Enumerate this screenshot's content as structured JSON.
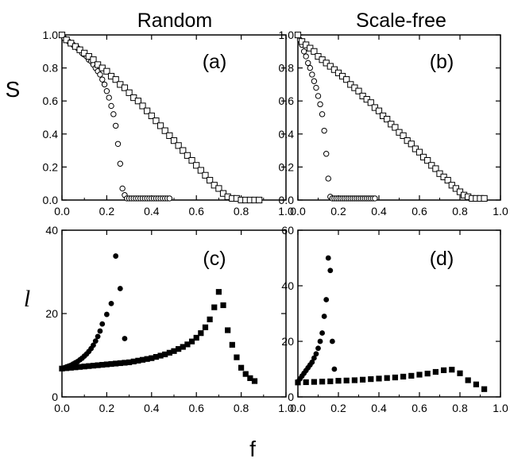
{
  "columns": [
    "Random",
    "Scale-free"
  ],
  "xlabel": "f",
  "chart_data": [
    {
      "type": "scatter",
      "panel": "(a)",
      "ylabel": "S",
      "xlim": [
        0,
        1.0
      ],
      "ylim": [
        0,
        1.0
      ],
      "xticks": [
        "0.0",
        "0.2",
        "0.4",
        "0.6",
        "0.8",
        "1.0"
      ],
      "yticks": [
        "0.0",
        "0.2",
        "0.4",
        "0.6",
        "0.8",
        "1.0"
      ],
      "series": [
        {
          "marker": "open-circle",
          "x": [
            0.0,
            0.01,
            0.02,
            0.03,
            0.04,
            0.05,
            0.06,
            0.07,
            0.08,
            0.09,
            0.1,
            0.11,
            0.12,
            0.13,
            0.14,
            0.15,
            0.16,
            0.17,
            0.18,
            0.19,
            0.2,
            0.21,
            0.22,
            0.23,
            0.24,
            0.25,
            0.26,
            0.27,
            0.28,
            0.29,
            0.3,
            0.31,
            0.32,
            0.33,
            0.34,
            0.35,
            0.36,
            0.37,
            0.38,
            0.39,
            0.4,
            0.41,
            0.42,
            0.43,
            0.44,
            0.45,
            0.46,
            0.47,
            0.48
          ],
          "y": [
            1.0,
            0.98,
            0.97,
            0.96,
            0.95,
            0.94,
            0.93,
            0.92,
            0.91,
            0.89,
            0.88,
            0.87,
            0.85,
            0.84,
            0.82,
            0.8,
            0.78,
            0.76,
            0.73,
            0.7,
            0.66,
            0.62,
            0.57,
            0.52,
            0.45,
            0.34,
            0.22,
            0.07,
            0.03,
            0.01,
            0.01,
            0.01,
            0.01,
            0.01,
            0.01,
            0.01,
            0.01,
            0.01,
            0.01,
            0.01,
            0.01,
            0.01,
            0.01,
            0.01,
            0.01,
            0.01,
            0.01,
            0.01,
            0.01
          ]
        },
        {
          "marker": "open-square",
          "x": [
            0.0,
            0.02,
            0.04,
            0.06,
            0.08,
            0.1,
            0.12,
            0.14,
            0.16,
            0.18,
            0.2,
            0.22,
            0.24,
            0.26,
            0.28,
            0.3,
            0.32,
            0.34,
            0.36,
            0.38,
            0.4,
            0.42,
            0.44,
            0.46,
            0.48,
            0.5,
            0.52,
            0.54,
            0.56,
            0.58,
            0.6,
            0.62,
            0.64,
            0.66,
            0.68,
            0.7,
            0.72,
            0.74,
            0.76,
            0.78,
            0.8,
            0.82,
            0.84,
            0.86,
            0.88
          ],
          "y": [
            1.0,
            0.97,
            0.95,
            0.93,
            0.91,
            0.89,
            0.87,
            0.85,
            0.82,
            0.8,
            0.78,
            0.75,
            0.73,
            0.7,
            0.68,
            0.65,
            0.62,
            0.6,
            0.57,
            0.54,
            0.51,
            0.48,
            0.45,
            0.42,
            0.39,
            0.36,
            0.33,
            0.3,
            0.27,
            0.24,
            0.21,
            0.18,
            0.15,
            0.12,
            0.09,
            0.07,
            0.04,
            0.02,
            0.01,
            0.01,
            0.0,
            0.0,
            0.0,
            0.0,
            0.0
          ]
        }
      ]
    },
    {
      "type": "scatter",
      "panel": "(b)",
      "xlim": [
        0,
        1.0
      ],
      "ylim": [
        0,
        1.0
      ],
      "xticks": [
        "0.0",
        "0.2",
        "0.4",
        "0.6",
        "0.8",
        "1.0"
      ],
      "yticks": [
        "0.0",
        "0.2",
        "0.4",
        "0.6",
        "0.8",
        "1.0"
      ],
      "series": [
        {
          "marker": "open-circle",
          "x": [
            0.0,
            0.01,
            0.02,
            0.03,
            0.04,
            0.05,
            0.06,
            0.07,
            0.08,
            0.09,
            0.1,
            0.11,
            0.12,
            0.13,
            0.14,
            0.15,
            0.16,
            0.17,
            0.18,
            0.19,
            0.2,
            0.21,
            0.22,
            0.23,
            0.24,
            0.25,
            0.26,
            0.27,
            0.28,
            0.29,
            0.3,
            0.31,
            0.32,
            0.33,
            0.34,
            0.35,
            0.36,
            0.37,
            0.38
          ],
          "y": [
            1.0,
            0.97,
            0.94,
            0.9,
            0.87,
            0.83,
            0.8,
            0.76,
            0.72,
            0.68,
            0.63,
            0.58,
            0.52,
            0.42,
            0.28,
            0.13,
            0.02,
            0.01,
            0.01,
            0.01,
            0.01,
            0.01,
            0.01,
            0.01,
            0.01,
            0.01,
            0.01,
            0.01,
            0.01,
            0.01,
            0.01,
            0.01,
            0.01,
            0.01,
            0.01,
            0.01,
            0.01,
            0.01,
            0.01
          ]
        },
        {
          "marker": "open-square",
          "x": [
            0.0,
            0.02,
            0.04,
            0.06,
            0.08,
            0.1,
            0.12,
            0.14,
            0.16,
            0.18,
            0.2,
            0.22,
            0.24,
            0.26,
            0.28,
            0.3,
            0.32,
            0.34,
            0.36,
            0.38,
            0.4,
            0.42,
            0.44,
            0.46,
            0.48,
            0.5,
            0.52,
            0.54,
            0.56,
            0.58,
            0.6,
            0.62,
            0.64,
            0.66,
            0.68,
            0.7,
            0.72,
            0.74,
            0.76,
            0.78,
            0.8,
            0.82,
            0.84,
            0.86,
            0.88,
            0.9,
            0.92
          ],
          "y": [
            1.0,
            0.96,
            0.94,
            0.92,
            0.9,
            0.87,
            0.85,
            0.83,
            0.81,
            0.79,
            0.77,
            0.75,
            0.73,
            0.7,
            0.68,
            0.66,
            0.63,
            0.61,
            0.59,
            0.56,
            0.54,
            0.51,
            0.49,
            0.46,
            0.44,
            0.41,
            0.39,
            0.36,
            0.34,
            0.31,
            0.29,
            0.26,
            0.24,
            0.21,
            0.19,
            0.16,
            0.14,
            0.12,
            0.09,
            0.07,
            0.05,
            0.03,
            0.02,
            0.01,
            0.01,
            0.01,
            0.01
          ]
        }
      ]
    },
    {
      "type": "scatter",
      "panel": "(c)",
      "ylabel": "l",
      "xlim": [
        0,
        1.0
      ],
      "ylim": [
        0,
        40
      ],
      "xticks": [
        "0.0",
        "0.2",
        "0.4",
        "0.6",
        "0.8",
        "1.0"
      ],
      "yticks": [
        "0",
        "20",
        "40"
      ],
      "series": [
        {
          "marker": "filled-circle",
          "x": [
            0.0,
            0.01,
            0.02,
            0.03,
            0.04,
            0.05,
            0.06,
            0.07,
            0.08,
            0.09,
            0.1,
            0.11,
            0.12,
            0.13,
            0.14,
            0.15,
            0.16,
            0.17,
            0.18,
            0.2,
            0.22,
            0.24,
            0.26,
            0.28
          ],
          "y": [
            6.8,
            7.0,
            7.2,
            7.4,
            7.6,
            7.9,
            8.2,
            8.5,
            8.9,
            9.3,
            9.8,
            10.3,
            10.9,
            11.6,
            12.4,
            13.4,
            14.5,
            15.8,
            17.5,
            19.8,
            22.4,
            33.8,
            26.0,
            14.0
          ]
        },
        {
          "marker": "filled-square",
          "x": [
            0.0,
            0.02,
            0.04,
            0.06,
            0.08,
            0.1,
            0.12,
            0.14,
            0.16,
            0.18,
            0.2,
            0.22,
            0.24,
            0.26,
            0.28,
            0.3,
            0.32,
            0.34,
            0.36,
            0.38,
            0.4,
            0.42,
            0.44,
            0.46,
            0.48,
            0.5,
            0.52,
            0.54,
            0.56,
            0.58,
            0.6,
            0.62,
            0.64,
            0.66,
            0.68,
            0.7,
            0.72,
            0.74,
            0.76,
            0.78,
            0.8,
            0.82,
            0.84,
            0.86
          ],
          "y": [
            6.8,
            6.9,
            7.0,
            7.1,
            7.2,
            7.3,
            7.4,
            7.5,
            7.6,
            7.7,
            7.8,
            7.9,
            8.0,
            8.1,
            8.2,
            8.3,
            8.5,
            8.7,
            8.9,
            9.1,
            9.3,
            9.6,
            9.9,
            10.2,
            10.6,
            11.0,
            11.5,
            12.0,
            12.6,
            13.3,
            14.2,
            15.3,
            16.7,
            18.6,
            21.5,
            25.2,
            22.0,
            16.0,
            12.5,
            9.5,
            7.0,
            5.5,
            4.5,
            3.8
          ]
        }
      ]
    },
    {
      "type": "scatter",
      "panel": "(d)",
      "xlim": [
        0,
        1.0
      ],
      "ylim": [
        0,
        60
      ],
      "xticks": [
        "0.0",
        "0.2",
        "0.4",
        "0.6",
        "0.8",
        "1.0"
      ],
      "yticks": [
        "0",
        "20",
        "40",
        "60"
      ],
      "series": [
        {
          "marker": "filled-circle",
          "x": [
            0.0,
            0.01,
            0.02,
            0.03,
            0.04,
            0.05,
            0.06,
            0.07,
            0.08,
            0.09,
            0.1,
            0.11,
            0.12,
            0.13,
            0.14,
            0.15,
            0.16,
            0.17,
            0.18
          ],
          "y": [
            5.5,
            6.5,
            7.5,
            8.5,
            9.5,
            10.5,
            11.5,
            12.5,
            14.0,
            15.5,
            17.5,
            20.0,
            23.0,
            29.0,
            35.0,
            50.0,
            45.5,
            20.0,
            10.0
          ]
        },
        {
          "marker": "filled-square",
          "x": [
            0.0,
            0.04,
            0.08,
            0.12,
            0.16,
            0.2,
            0.24,
            0.28,
            0.32,
            0.36,
            0.4,
            0.44,
            0.48,
            0.52,
            0.56,
            0.6,
            0.64,
            0.68,
            0.72,
            0.76,
            0.8,
            0.84,
            0.88,
            0.92
          ],
          "y": [
            5.2,
            5.3,
            5.4,
            5.5,
            5.6,
            5.8,
            5.9,
            6.0,
            6.2,
            6.4,
            6.6,
            6.8,
            7.0,
            7.3,
            7.6,
            8.0,
            8.4,
            9.0,
            9.6,
            9.8,
            8.5,
            6.0,
            4.5,
            2.8
          ]
        }
      ]
    }
  ]
}
